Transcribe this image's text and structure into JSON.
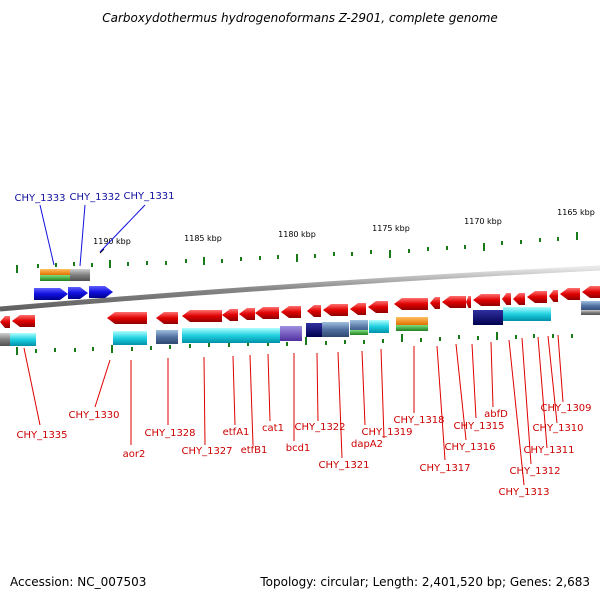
{
  "title": "Carboxydothermus hydrogenoformans Z-2901, complete genome",
  "footer": {
    "accession": "Accession: NC_007503",
    "summary": "Topology: circular; Length: 2,401,520 bp; Genes: 2,683"
  },
  "scale_labels": [
    "1190 kbp",
    "1185 kbp",
    "1180 kbp",
    "1175 kbp",
    "1170 kbp",
    "1165 kbp"
  ],
  "colors": {
    "forward_gene": "#1010e0",
    "reverse_gene": "#e00000",
    "forward_label": "#1010a0",
    "reverse_label": "#cc0000",
    "backbone": "#888888",
    "tick": "#1a7a1a",
    "cds": "#20d0e0",
    "other_feature": "#808080",
    "orange": "#f08000",
    "green": "#30b030",
    "navy": "#101070",
    "purple": "#6040b0"
  },
  "forward_genes": [
    "CHY_1333",
    "CHY_1332",
    "CHY_1331"
  ],
  "reverse_genes": [
    "CHY_1335",
    "CHY_1330",
    "aor2",
    "CHY_1328",
    "CHY_1327",
    "etfA1",
    "etfB1",
    "cat1",
    "bcd1",
    "CHY_1322",
    "CHY_1321",
    "dapA2",
    "CHY_1319",
    "CHY_1318",
    "CHY_1317",
    "CHY_1316",
    "CHY_1315",
    "abfD",
    "CHY_1313",
    "CHY_1312",
    "CHY_1311",
    "CHY_1310",
    "CHY_1309"
  ]
}
